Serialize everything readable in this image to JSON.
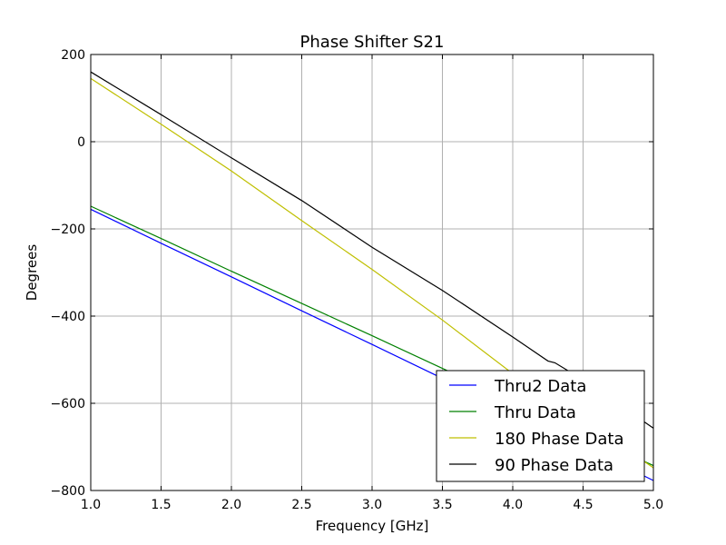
{
  "chart_data": {
    "type": "line",
    "title": "Phase Shifter S21",
    "xlabel": "Frequency [GHz]",
    "ylabel": "Degrees",
    "xlim": [
      1.0,
      5.0
    ],
    "ylim": [
      -800,
      200
    ],
    "xticks": [
      1.0,
      1.5,
      2.0,
      2.5,
      3.0,
      3.5,
      4.0,
      4.5,
      5.0
    ],
    "xtick_labels": [
      "1.0",
      "1.5",
      "2.0",
      "2.5",
      "3.0",
      "3.5",
      "4.0",
      "4.5",
      "5.0"
    ],
    "yticks": [
      200,
      0,
      -200,
      -400,
      -600,
      -800
    ],
    "ytick_labels": [
      "200",
      "0",
      "−200",
      "−400",
      "−600",
      "−800"
    ],
    "grid": true,
    "legend_position": "lower-right",
    "series": [
      {
        "name": "Thru2 Data",
        "color": "#0000ff",
        "x": [
          1.0,
          1.5,
          2.0,
          2.5,
          3.0,
          3.5,
          4.0,
          4.5,
          5.0
        ],
        "y": [
          -155,
          -233,
          -310,
          -388,
          -465,
          -543,
          -620,
          -698,
          -777
        ]
      },
      {
        "name": "Thru Data",
        "color": "#008000",
        "x": [
          1.0,
          1.5,
          2.0,
          2.5,
          3.0,
          3.5,
          4.0,
          4.5,
          5.0
        ],
        "y": [
          -148,
          -222,
          -297,
          -371,
          -445,
          -520,
          -594,
          -668,
          -743
        ]
      },
      {
        "name": "180 Phase Data",
        "color": "#bfbf00",
        "x": [
          1.0,
          1.5,
          2.0,
          2.5,
          3.0,
          3.5,
          4.0,
          4.5,
          5.0
        ],
        "y": [
          145,
          40,
          -67,
          -181,
          -293,
          -409,
          -532,
          -637,
          -748
        ]
      },
      {
        "name": "90 Phase Data",
        "color": "#000000",
        "x": [
          1.0,
          1.5,
          2.0,
          2.5,
          3.0,
          3.5,
          4.0,
          4.25,
          4.3,
          4.5,
          5.0
        ],
        "y": [
          160,
          62,
          -37,
          -135,
          -242,
          -341,
          -448,
          -503,
          -507,
          -546,
          -657
        ]
      }
    ]
  }
}
